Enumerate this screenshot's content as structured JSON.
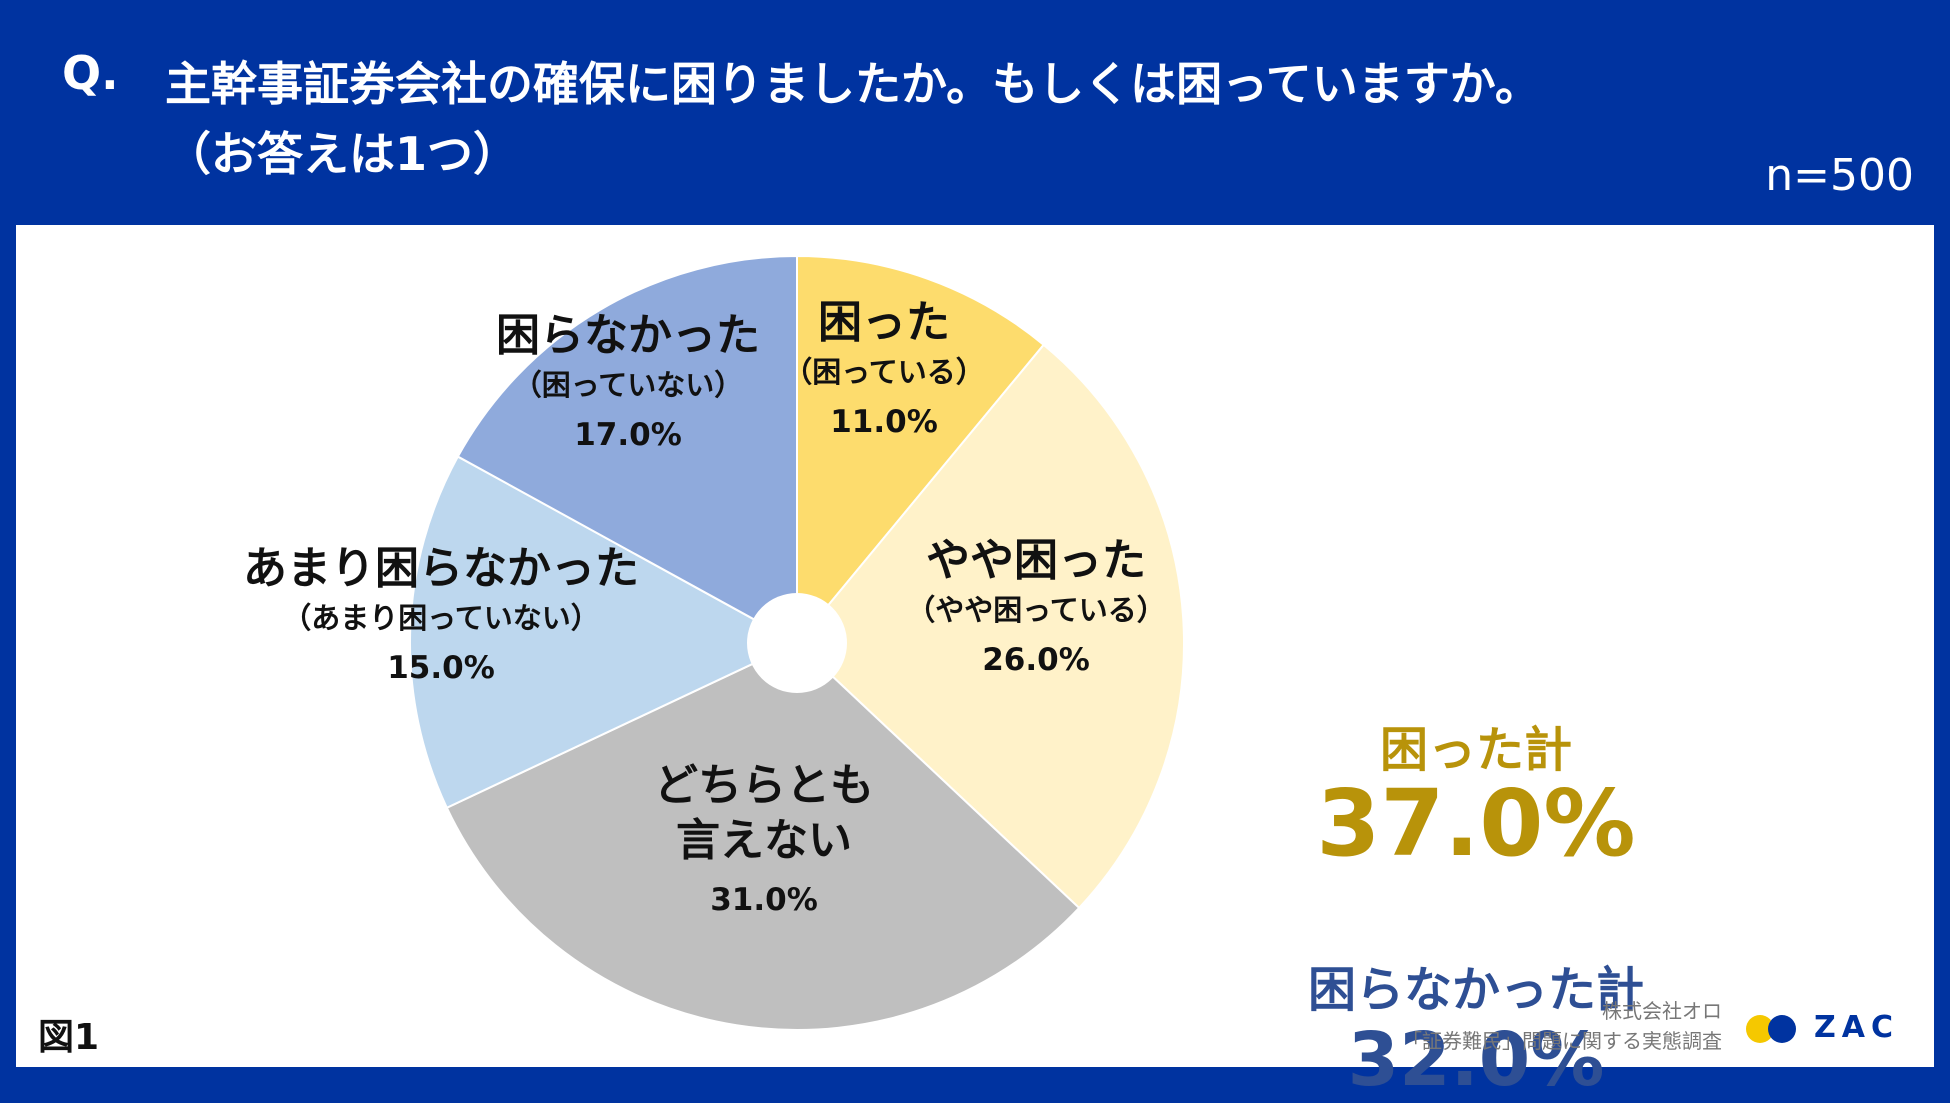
{
  "header": {
    "q_mark": "Q.",
    "question_line1": "主幹事証券会社の確保に困りましたか。もしくは困っていますか。",
    "question_line2": "（お答えは1つ）",
    "n_label": "n=500"
  },
  "chart_data": {
    "type": "pie",
    "slices": [
      {
        "label": "困った",
        "sublabel": "（困っている）",
        "value": 11.0,
        "value_label": "11.0%",
        "color": "#fddc6d"
      },
      {
        "label": "やや困った",
        "sublabel": "（やや困っている）",
        "value": 26.0,
        "value_label": "26.0%",
        "color": "#fff2c9"
      },
      {
        "label": "どちらとも言えない",
        "label_lines": [
          "どちらとも",
          "言えない"
        ],
        "sublabel": "",
        "value": 31.0,
        "value_label": "31.0%",
        "color": "#bfbfbf"
      },
      {
        "label": "あまり困らなかった",
        "sublabel": "（あまり困っていない）",
        "value": 15.0,
        "value_label": "15.0%",
        "color": "#bdd7ee"
      },
      {
        "label": "困らなかった",
        "sublabel": "（困っていない）",
        "value": 17.0,
        "value_label": "17.0%",
        "color": "#8faadc"
      }
    ],
    "start": "12 o'clock",
    "direction": "clockwise",
    "donut_hole": true
  },
  "totals": {
    "troubled_label": "困った計",
    "troubled_value": "37.0%",
    "troubled_color": "#b8930a",
    "not_troubled_label": "困らなかった計",
    "not_troubled_value": "32.0%",
    "not_troubled_color": "#2e4f94"
  },
  "figure_label": "図1",
  "source": {
    "company": "株式会社オロ",
    "survey": "「証券難民」問題に関する実態調査"
  },
  "logo": {
    "text": "ZAC",
    "dot_colors": [
      "#f5c800",
      "#0033a0"
    ]
  }
}
